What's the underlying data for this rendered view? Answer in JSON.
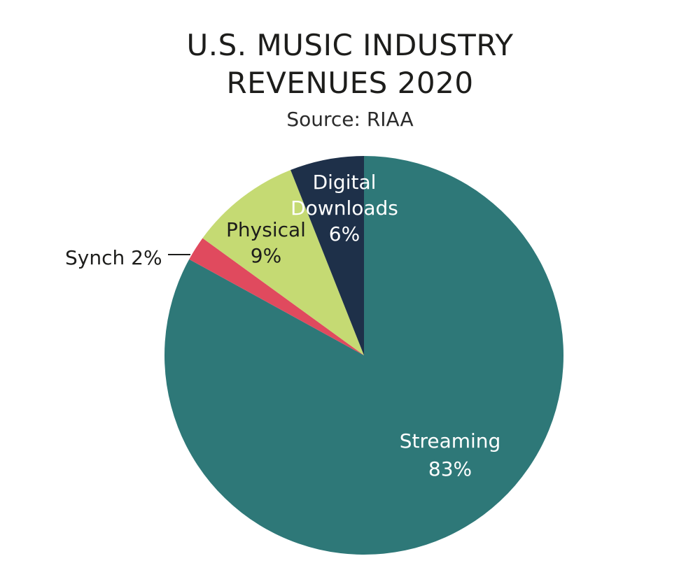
{
  "chart_data": {
    "type": "pie",
    "title_lines": [
      "U.S. MUSIC INDUSTRY",
      "REVENUES 2020"
    ],
    "subtitle": "Source: RIAA",
    "slices": [
      {
        "label_lines": [
          "Streaming",
          "83%"
        ],
        "value": 83,
        "color": "#2e7878",
        "text_color": "#ffffff"
      },
      {
        "label_lines": [
          "Synch 2%"
        ],
        "value": 2,
        "color": "#e04a5e",
        "text_color": "#1d1d1b"
      },
      {
        "label_lines": [
          "Physical",
          "9%"
        ],
        "value": 9,
        "color": "#c5da73",
        "text_color": "#1d1d1b"
      },
      {
        "label_lines": [
          "Digital",
          "Downloads",
          "6%"
        ],
        "value": 6,
        "color": "#1e3049",
        "text_color": "#ffffff"
      }
    ]
  }
}
